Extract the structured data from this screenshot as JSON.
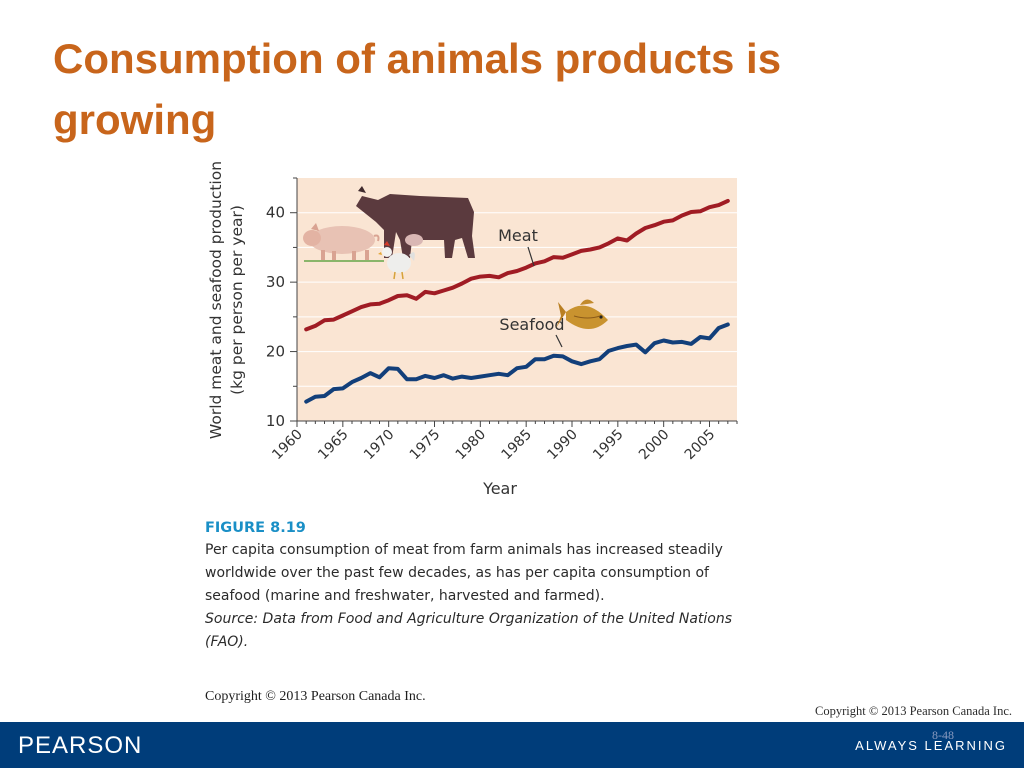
{
  "slide": {
    "title": "Consumption of animals products is growing",
    "copyright": "Copyright © 2013 Pearson Canada Inc.",
    "slide_number": "8-48",
    "footer_brand": "PEARSON",
    "footer_tagline": "ALWAYS LEARNING"
  },
  "figure": {
    "label": "FIGURE",
    "number": "8.19",
    "caption": "Per capita consumption of meat from farm animals has increased steadily worldwide over the past few decades, as has per capita consumption of seafood (marine and freshwater, harvested and farmed).",
    "source": "Source: Data from Food and Agriculture Organization of the United Nations (FAO).",
    "copyright": "Copyright © 2013 Pearson Canada Inc.",
    "illustrations": [
      "cow-icon",
      "pig-icon",
      "chicken-icon",
      "fish-icon"
    ]
  },
  "chart_data": {
    "type": "line",
    "xlabel": "Year",
    "ylabel_line1": "World meat and seafood production",
    "ylabel_line2": "(kg per person per year)",
    "xlim": [
      1960,
      2008
    ],
    "ylim": [
      10,
      45
    ],
    "xticks": [
      1960,
      1965,
      1970,
      1975,
      1980,
      1985,
      1990,
      1995,
      2000,
      2005
    ],
    "yticks": [
      10,
      20,
      30,
      40
    ],
    "grid": true,
    "background_color": "#fae5d3",
    "series": [
      {
        "name": "Meat",
        "color": "#a01c24",
        "x": [
          1961,
          1962,
          1963,
          1964,
          1965,
          1966,
          1967,
          1968,
          1969,
          1970,
          1971,
          1972,
          1973,
          1974,
          1975,
          1976,
          1977,
          1978,
          1979,
          1980,
          1981,
          1982,
          1983,
          1984,
          1985,
          1986,
          1987,
          1988,
          1989,
          1990,
          1991,
          1992,
          1993,
          1994,
          1995,
          1996,
          1997,
          1998,
          1999,
          2000,
          2001,
          2002,
          2003,
          2004,
          2005,
          2006,
          2007
        ],
        "values": [
          23.2,
          23.7,
          24.5,
          24.6,
          25.2,
          25.8,
          26.4,
          26.8,
          26.9,
          27.4,
          28.0,
          28.1,
          27.6,
          28.6,
          28.4,
          28.8,
          29.2,
          29.8,
          30.5,
          30.8,
          30.9,
          30.7,
          31.3,
          31.6,
          32.1,
          32.7,
          33.0,
          33.6,
          33.5,
          34.0,
          34.5,
          34.7,
          35.0,
          35.6,
          36.3,
          36.0,
          37.0,
          37.8,
          38.2,
          38.7,
          38.9,
          39.6,
          40.1,
          40.2,
          40.8,
          41.1,
          41.7
        ]
      },
      {
        "name": "Seafood",
        "color": "#123f7a",
        "x": [
          1961,
          1962,
          1963,
          1964,
          1965,
          1966,
          1967,
          1968,
          1969,
          1970,
          1971,
          1972,
          1973,
          1974,
          1975,
          1976,
          1977,
          1978,
          1979,
          1980,
          1981,
          1982,
          1983,
          1984,
          1985,
          1986,
          1987,
          1988,
          1989,
          1990,
          1991,
          1992,
          1993,
          1994,
          1995,
          1996,
          1997,
          1998,
          1999,
          2000,
          2001,
          2002,
          2003,
          2004,
          2005,
          2006,
          2007
        ],
        "values": [
          12.8,
          13.5,
          13.6,
          14.6,
          14.7,
          15.6,
          16.2,
          16.9,
          16.3,
          17.6,
          17.5,
          16.0,
          16.0,
          16.5,
          16.2,
          16.6,
          16.1,
          16.4,
          16.2,
          16.4,
          16.6,
          16.8,
          16.6,
          17.6,
          17.8,
          18.9,
          18.9,
          19.4,
          19.3,
          18.6,
          18.2,
          18.6,
          18.9,
          20.1,
          20.5,
          20.8,
          21.0,
          19.9,
          21.2,
          21.6,
          21.3,
          21.4,
          21.1,
          22.1,
          21.9,
          23.4,
          23.9
        ]
      }
    ],
    "annotations": [
      {
        "text": "Meat",
        "series": "Meat"
      },
      {
        "text": "Seafood",
        "series": "Seafood"
      }
    ]
  }
}
